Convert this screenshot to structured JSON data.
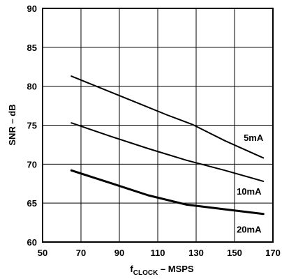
{
  "chart_data": {
    "type": "line",
    "xlabel_main": "f",
    "xlabel_sub": "CLOCK",
    "xlabel_rest": " – MSPS",
    "ylabel": "SNR – dB",
    "xlim": [
      50,
      170
    ],
    "ylim": [
      60,
      90
    ],
    "xticks": [
      50,
      70,
      90,
      110,
      130,
      150,
      170
    ],
    "yticks": [
      60,
      65,
      70,
      75,
      80,
      85,
      90
    ],
    "grid": true,
    "series": [
      {
        "name": "5mA",
        "x": [
          65,
          80,
          100,
          115,
          128,
          145,
          165
        ],
        "y": [
          81.3,
          79.8,
          77.8,
          76.3,
          75.1,
          73.0,
          70.8
        ]
      },
      {
        "name": "10mA",
        "x": [
          65,
          85,
          105,
          125,
          145,
          165
        ],
        "y": [
          75.3,
          73.6,
          72.0,
          70.5,
          69.2,
          67.8
        ]
      },
      {
        "name": "20mA",
        "x": [
          65,
          85,
          105,
          125,
          145,
          165
        ],
        "y": [
          69.2,
          67.6,
          66.0,
          64.8,
          64.2,
          63.6
        ]
      }
    ]
  }
}
